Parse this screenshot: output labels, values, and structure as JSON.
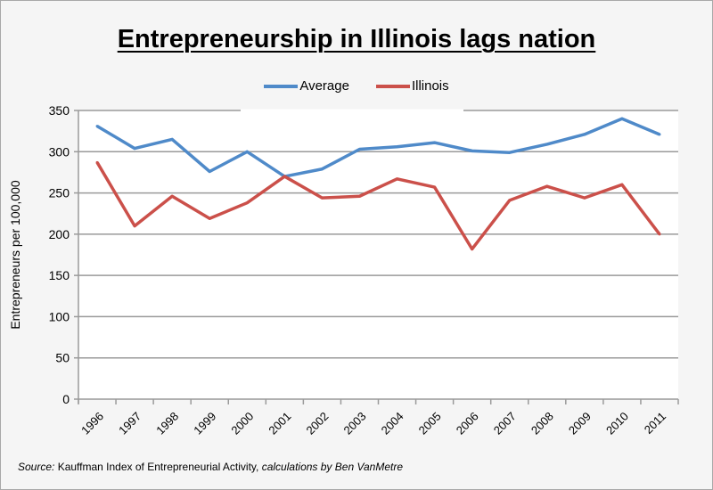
{
  "chart_data": {
    "type": "line",
    "title": "Entrepreneurship in Illinois lags nation",
    "xlabel": "",
    "ylabel": "Entrepreneurs per 100,000",
    "ylim": [
      0,
      350
    ],
    "yticks": [
      0,
      50,
      100,
      150,
      200,
      250,
      300,
      350
    ],
    "grid": true,
    "legend": "top",
    "categories": [
      "1996",
      "1997",
      "1998",
      "1999",
      "2000",
      "2001",
      "2002",
      "2003",
      "2004",
      "2005",
      "2006",
      "2007",
      "2008",
      "2009",
      "2010",
      "2011"
    ],
    "series": [
      {
        "name": "Average",
        "color": "#4f8ac9",
        "values": [
          331,
          304,
          315,
          276,
          300,
          270,
          279,
          303,
          306,
          311,
          301,
          299,
          309,
          321,
          340,
          321
        ]
      },
      {
        "name": "Illinois",
        "color": "#cb504a",
        "values": [
          287,
          210,
          246,
          219,
          238,
          270,
          244,
          246,
          267,
          257,
          182,
          241,
          258,
          244,
          260,
          200
        ]
      }
    ],
    "source_label": "Source:",
    "source_text": " Kauffman Index of Entrepreneurial Activity, ",
    "source_credit": "calculations by Ben VanMetre"
  }
}
